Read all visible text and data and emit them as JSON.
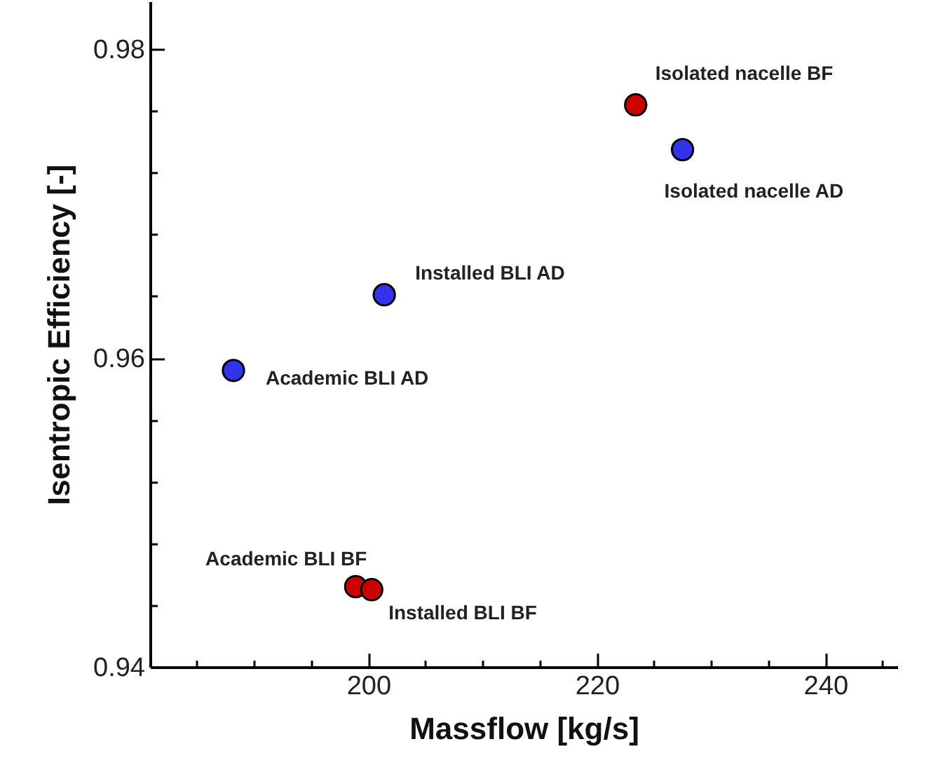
{
  "chart_data": {
    "type": "scatter",
    "xlabel": "Massflow [kg/s]",
    "ylabel": "Isentropic Efficiency [-]",
    "xlim": [
      180.9,
      246.3
    ],
    "xticks": [
      {
        "value": 185,
        "label": null
      },
      {
        "value": 190,
        "label": null
      },
      {
        "value": 195,
        "label": null
      },
      200,
      {
        "value": 205,
        "label": null
      },
      {
        "value": 210,
        "label": null
      },
      {
        "value": 215,
        "label": null
      },
      220,
      {
        "value": 225,
        "label": null
      },
      {
        "value": 230,
        "label": null
      },
      {
        "value": 235,
        "label": null
      },
      240,
      {
        "value": 245,
        "label": null
      }
    ],
    "ylim": [
      0.94,
      0.9831
    ],
    "yticks": [
      0.94,
      {
        "value": 0.944,
        "label": null
      },
      {
        "value": 0.948,
        "label": null
      },
      {
        "value": 0.952,
        "label": null
      },
      {
        "value": 0.956,
        "label": null
      },
      0.96,
      {
        "value": 0.964,
        "label": null
      },
      {
        "value": 0.968,
        "label": null
      },
      {
        "value": 0.972,
        "label": null
      },
      {
        "value": 0.976,
        "label": null
      },
      0.98
    ],
    "marker": "circle",
    "series": [
      {
        "color": "#cc0000",
        "x": [
          223.4,
          198.9,
          200.3
        ],
        "values": [
          0.9764,
          0.9452,
          0.945
        ]
      },
      {
        "color": "#3333ee",
        "x": [
          227.5,
          201.4,
          188.2
        ],
        "values": [
          0.9735,
          0.9641,
          0.9592
        ]
      }
    ],
    "annotations": [
      {
        "text": "Isolated nacelle BF",
        "x": 223.4,
        "y": 0.9764
      },
      {
        "text": "Isolated nacelle AD",
        "x": 227.5,
        "y": 0.9735
      },
      {
        "text": "Installed BLI AD",
        "x": 201.4,
        "y": 0.9641
      },
      {
        "text": "Academic BLI AD",
        "x": 188.2,
        "y": 0.9592
      },
      {
        "text": "Academic BLI BF",
        "x": 198.9,
        "y": 0.9452
      },
      {
        "text": "Installed BLI BF",
        "x": 200.3,
        "y": 0.945
      }
    ]
  }
}
